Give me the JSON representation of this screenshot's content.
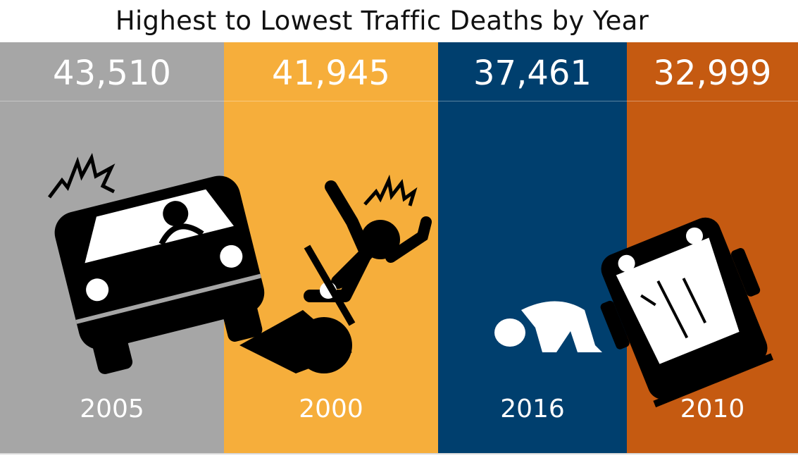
{
  "title": "Highest to Lowest Traffic Deaths by Year",
  "chart_data": {
    "type": "bar",
    "title": "Highest to Lowest Traffic Deaths by Year",
    "categories": [
      "2005",
      "2000",
      "2016",
      "2010"
    ],
    "values": [
      43510,
      41945,
      37461,
      32999
    ],
    "value_labels": [
      "43,510",
      "41,945",
      "37,461",
      "32,999"
    ],
    "colors": [
      "#a6a6a6",
      "#f6ae3b",
      "#003f6e",
      "#c55a11"
    ],
    "icons": [
      "car-crash-icon",
      "motorcycle-crash-icon",
      "pedestrian-down-icon",
      "overturned-car-icon"
    ]
  }
}
